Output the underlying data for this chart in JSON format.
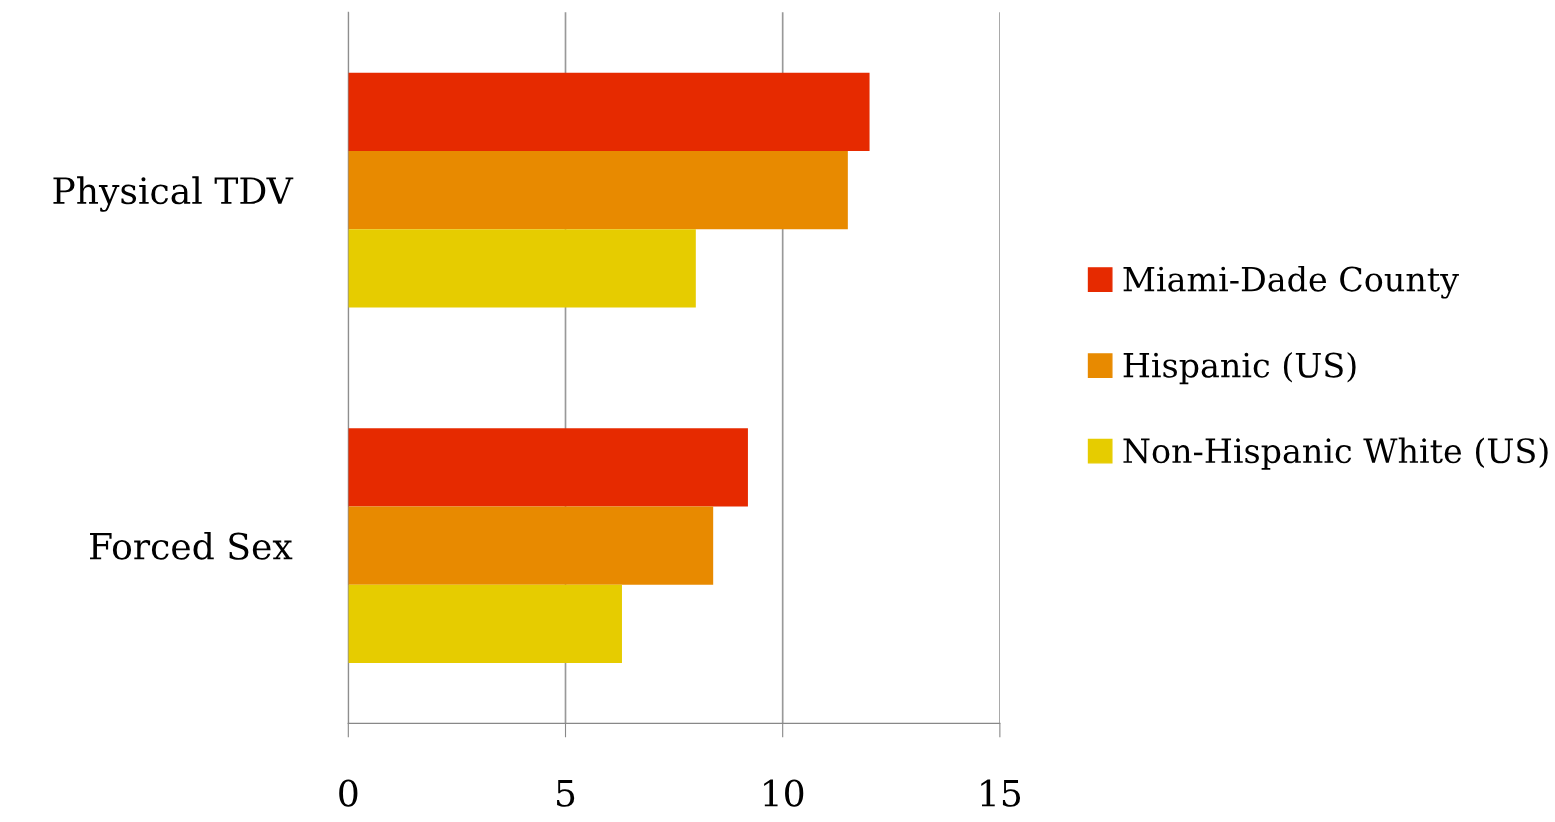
{
  "chart_data": {
    "type": "bar",
    "orientation": "horizontal",
    "categories": [
      "Physical TDV",
      "Forced Sex"
    ],
    "series": [
      {
        "name": "Miami-Dade County",
        "color": "#e62a00",
        "values": [
          12,
          9.2
        ]
      },
      {
        "name": "Hispanic (US)",
        "color": "#e88a00",
        "values": [
          11.5,
          8.4
        ]
      },
      {
        "name": "Non-Hispanic White (US)",
        "color": "#e6cc00",
        "values": [
          8,
          6.3
        ]
      }
    ],
    "xlim": [
      0,
      15
    ],
    "xticks": [
      0,
      5,
      10,
      15
    ],
    "grid": "x",
    "legend": "right"
  }
}
